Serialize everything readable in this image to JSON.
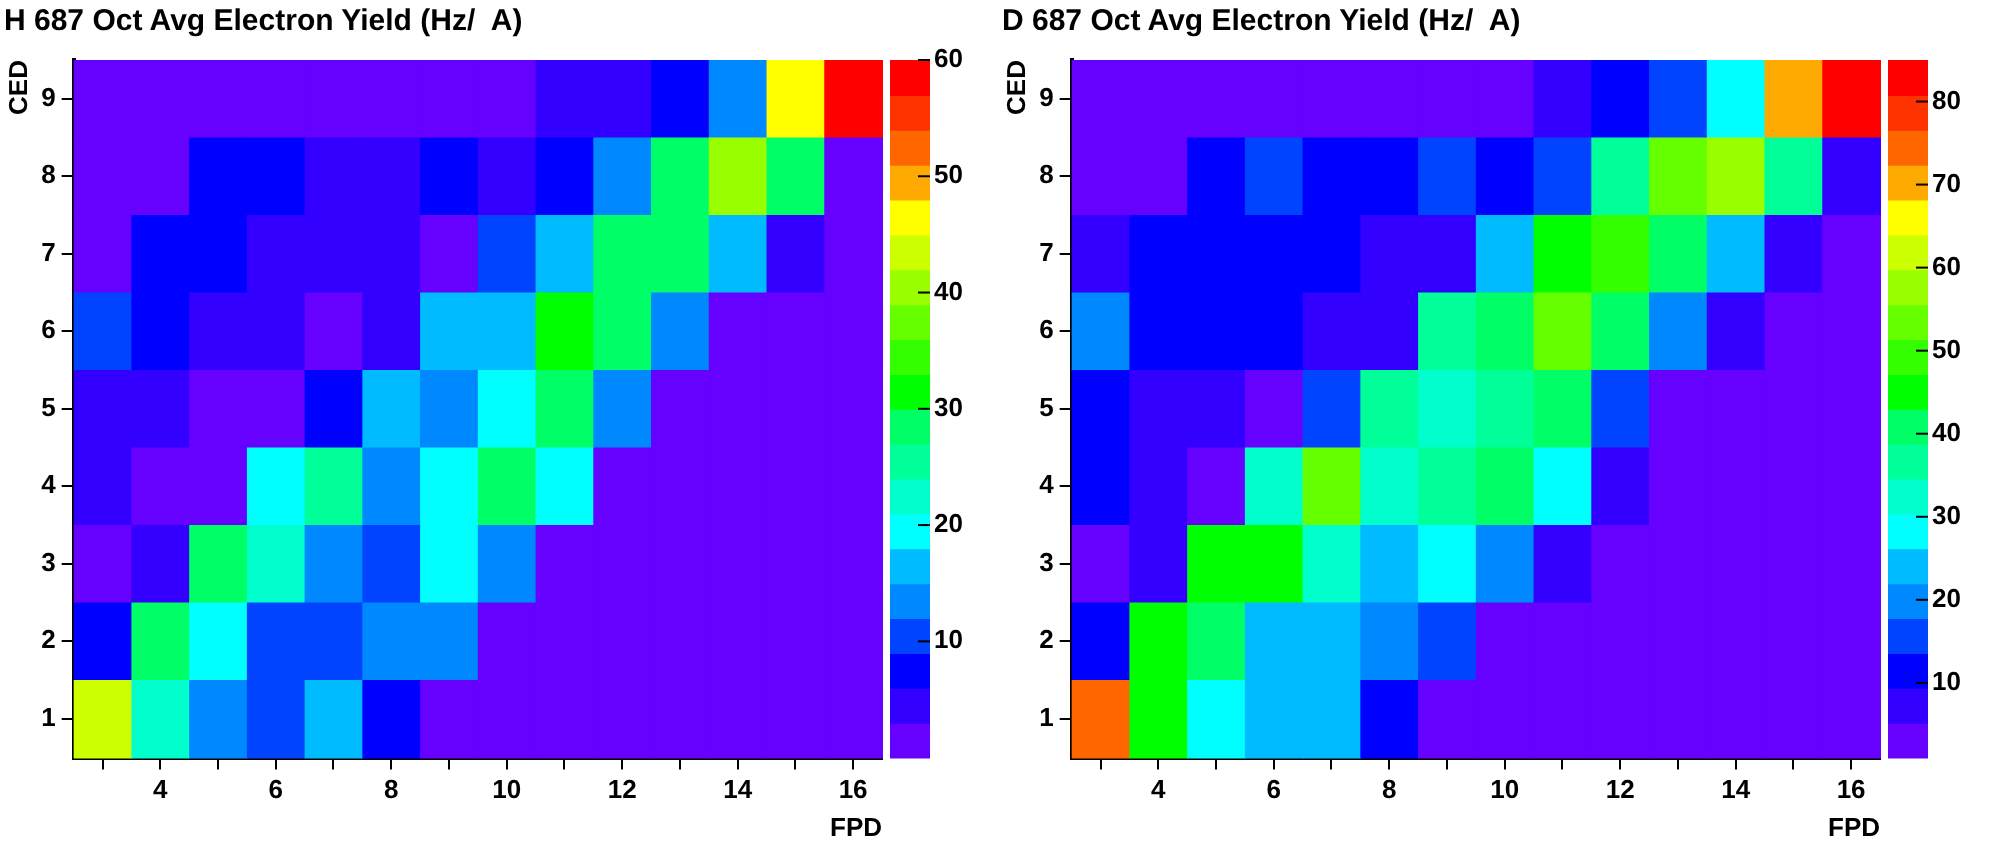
{
  "chart_data": [
    {
      "type": "heatmap",
      "title": "H 687 Oct Avg Electron Yield (Hz/  A)",
      "xlabel": "FPD",
      "ylabel": "CED",
      "categories": [
        null,
        "4",
        null,
        "6",
        null,
        "8",
        null,
        "10",
        null,
        "12",
        null,
        "14",
        null,
        "16"
      ],
      "y_categories": [
        "9",
        "8",
        "7",
        "6",
        "5",
        "4",
        "3",
        "2",
        "1"
      ],
      "cells": [
        [
          1.5,
          1.5,
          1.5,
          1.5,
          1.5,
          1.5,
          1.5,
          1.5,
          4.5,
          4.5,
          7.5,
          13.5,
          46.5,
          58.5
        ],
        [
          1.5,
          1.5,
          7.5,
          7.5,
          4.5,
          4.5,
          7.5,
          4.5,
          7.5,
          13.5,
          28.5,
          40.5,
          28.5,
          1.5
        ],
        [
          1.5,
          7.5,
          7.5,
          4.5,
          4.5,
          4.5,
          1.5,
          10.5,
          16.5,
          28.5,
          28.5,
          16.5,
          4.5,
          1.5
        ],
        [
          10.5,
          7.5,
          4.5,
          4.5,
          1.5,
          4.5,
          16.5,
          16.5,
          31.5,
          28.5,
          13.5,
          1.5,
          1.5,
          1.5
        ],
        [
          4.5,
          4.5,
          1.5,
          1.5,
          7.5,
          16.5,
          13.5,
          19.5,
          28.5,
          13.5,
          1.5,
          1.5,
          1.5,
          1.5
        ],
        [
          4.5,
          1.5,
          1.5,
          19.5,
          25.5,
          13.5,
          19.5,
          28.5,
          19.5,
          1.5,
          1.5,
          1.5,
          1.5,
          1.5
        ],
        [
          1.5,
          4.5,
          28.5,
          22.5,
          13.5,
          10.5,
          19.5,
          13.5,
          1.5,
          1.5,
          1.5,
          1.5,
          1.5,
          1.5
        ],
        [
          7.5,
          28.5,
          19.5,
          10.5,
          10.5,
          13.5,
          13.5,
          1.5,
          1.5,
          1.5,
          1.5,
          1.5,
          1.5,
          1.5
        ],
        [
          43.5,
          22.5,
          13.5,
          10.5,
          16.5,
          7.5,
          1.5,
          1.5,
          1.5,
          1.5,
          1.5,
          1.5,
          1.5,
          1.5
        ]
      ],
      "clim": [
        0,
        60
      ],
      "cticks": [
        10,
        20,
        30,
        40,
        50,
        60
      ]
    },
    {
      "type": "heatmap",
      "title": "D 687 Oct Avg Electron Yield (Hz/  A)",
      "xlabel": "FPD",
      "ylabel": "CED",
      "categories": [
        null,
        "4",
        null,
        "6",
        null,
        "8",
        null,
        "10",
        null,
        "12",
        null,
        "14",
        null,
        "16"
      ],
      "y_categories": [
        "9",
        "8",
        "7",
        "6",
        "5",
        "4",
        "3",
        "2",
        "1"
      ],
      "cells": [
        [
          3,
          3,
          3,
          3,
          3,
          3,
          3,
          3,
          7,
          12,
          16,
          28,
          70,
          83
        ],
        [
          3,
          3,
          12,
          16,
          12,
          12,
          16,
          12,
          16,
          37,
          54,
          58,
          37,
          7
        ],
        [
          7,
          12,
          12,
          12,
          12,
          7,
          7,
          24,
          45,
          49,
          41,
          24,
          7,
          3
        ],
        [
          20,
          12,
          12,
          12,
          7,
          7,
          37,
          41,
          54,
          41,
          20,
          7,
          3,
          3
        ],
        [
          12,
          7,
          7,
          3,
          16,
          37,
          33,
          37,
          41,
          16,
          3,
          3,
          3,
          3
        ],
        [
          12,
          7,
          3,
          33,
          54,
          33,
          37,
          41,
          28,
          7,
          3,
          3,
          3,
          3
        ],
        [
          3,
          7,
          45,
          45,
          33,
          24,
          28,
          20,
          7,
          3,
          3,
          3,
          3,
          3
        ],
        [
          12,
          45,
          41,
          24,
          24,
          20,
          16,
          3,
          3,
          3,
          3,
          3,
          3,
          3
        ],
        [
          75,
          45,
          28,
          24,
          24,
          12,
          3,
          3,
          3,
          3,
          3,
          3,
          3,
          3
        ]
      ],
      "clim": [
        1,
        85
      ],
      "cticks": [
        10,
        20,
        30,
        40,
        50,
        60,
        70,
        80
      ]
    }
  ]
}
